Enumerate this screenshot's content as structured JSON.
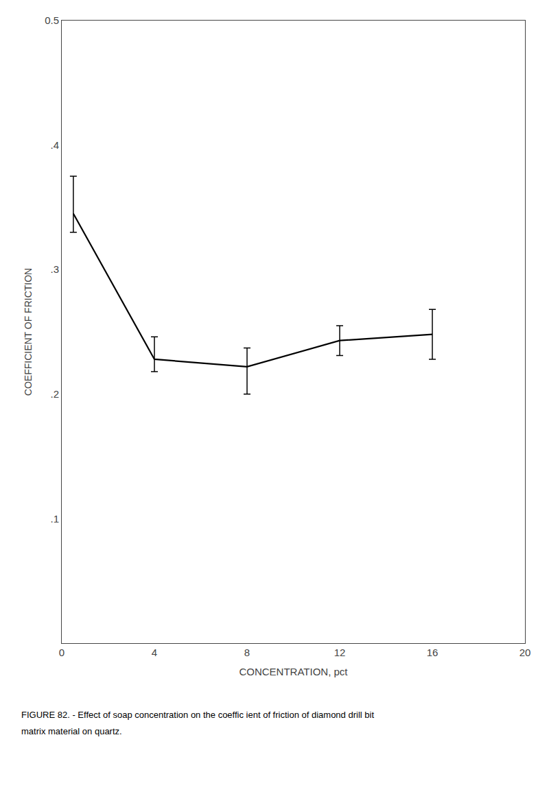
{
  "chart_data": {
    "type": "line",
    "x": [
      0.5,
      4,
      8,
      12,
      16
    ],
    "values": [
      0.345,
      0.228,
      0.222,
      0.243,
      0.248
    ],
    "yerr_upper": [
      0.03,
      0.018,
      0.015,
      0.012,
      0.02
    ],
    "yerr_lower": [
      0.015,
      0.01,
      0.022,
      0.012,
      0.02
    ],
    "color": "#000000",
    "line_style": "solid",
    "xlim": [
      0,
      20
    ],
    "xticks": [
      0,
      4,
      8,
      12,
      16,
      20
    ],
    "ylim": [
      0,
      0.5
    ],
    "yticks": [
      {
        "value": 0.1,
        "label": ".1"
      },
      {
        "value": 0.2,
        "label": ".2"
      },
      {
        "value": 0.3,
        "label": ".3"
      },
      {
        "value": 0.4,
        "label": ".4"
      },
      0.5
    ],
    "xlabel": "CONCENTRATION, pct",
    "ylabel": "COEFFICIENT OF FRICTION",
    "annotations": [
      "FIGURE 82. - Effect of soap concentration on the coeffic ient of friction of diamond drill bit",
      "matrix material on quartz."
    ],
    "grid": false
  }
}
